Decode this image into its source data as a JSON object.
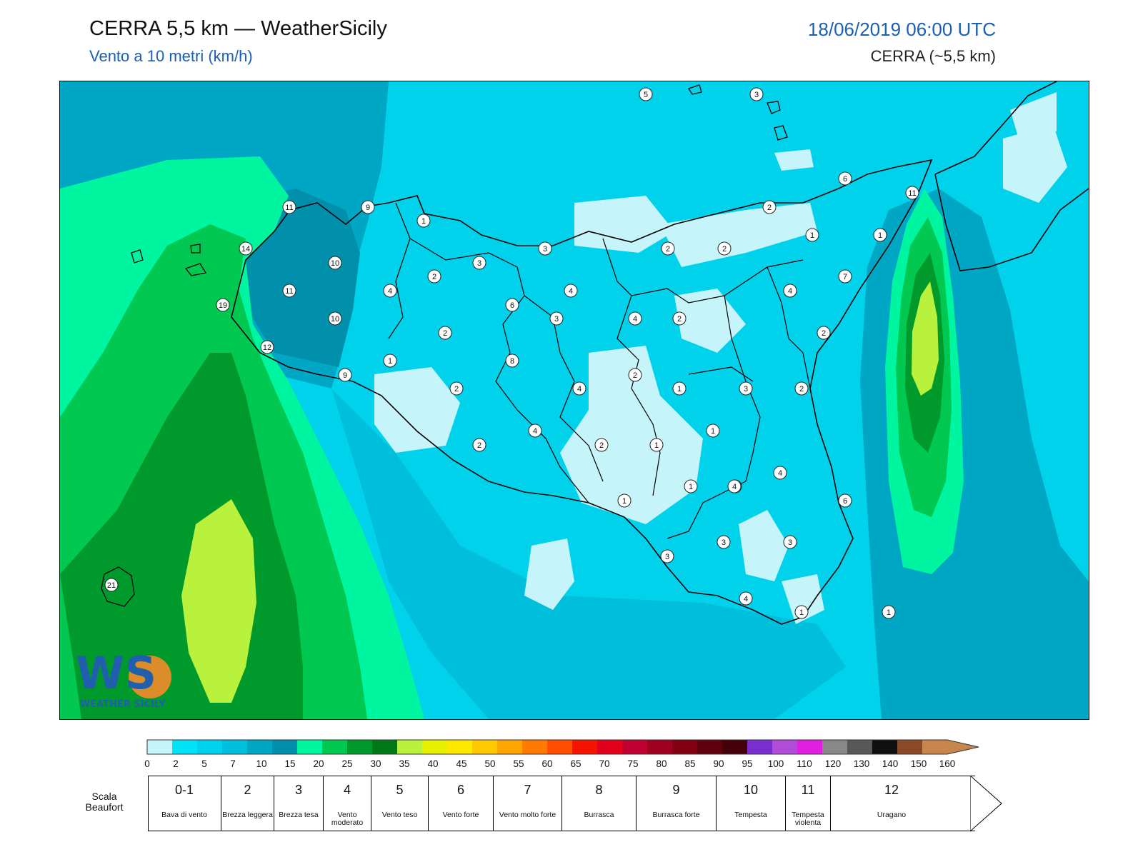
{
  "header": {
    "title": "CERRA 5,5 km — WeatherSicily",
    "subtitle": "Vento a 10 metri (km/h)",
    "datetime": "18/06/2019 06:00 UTC",
    "model": "CERRA (~5,5 km)"
  },
  "logo": {
    "text": "WS",
    "caption": "WEATHER SICILY"
  },
  "colorbar": {
    "ticks": [
      "0",
      "2",
      "5",
      "7",
      "10",
      "15",
      "20",
      "25",
      "30",
      "35",
      "40",
      "45",
      "50",
      "55",
      "60",
      "65",
      "70",
      "75",
      "80",
      "85",
      "90",
      "95",
      "100",
      "110",
      "120",
      "130",
      "140",
      "150",
      "160"
    ],
    "colors": [
      "#c6f4fb",
      "#00e3f6",
      "#00d2ee",
      "#00bfdc",
      "#00a7c4",
      "#0090ac",
      "#00f5a0",
      "#00c850",
      "#009a2c",
      "#007818",
      "#b8f23c",
      "#e6f000",
      "#ffe800",
      "#ffc800",
      "#ffa400",
      "#ff7a00",
      "#ff4e00",
      "#f41400",
      "#e0001c",
      "#c00030",
      "#a00020",
      "#800010",
      "#60000c",
      "#44000a",
      "#7a2ed0",
      "#b04cd8",
      "#e020e0",
      "#888888",
      "#585858",
      "#101010",
      "#8a4a28",
      "#c8864c"
    ]
  },
  "beaufort": {
    "label": "Scala Beaufort",
    "classes": [
      {
        "num": "0-1",
        "desc": "Bava di vento"
      },
      {
        "num": "2",
        "desc": "Brezza leggera"
      },
      {
        "num": "3",
        "desc": "Brezza tesa"
      },
      {
        "num": "4",
        "desc": "Vento moderato"
      },
      {
        "num": "5",
        "desc": "Vento teso"
      },
      {
        "num": "6",
        "desc": "Vento forte"
      },
      {
        "num": "7",
        "desc": "Vento molto forte"
      },
      {
        "num": "8",
        "desc": "Burrasca"
      },
      {
        "num": "9",
        "desc": "Burrasca forte"
      },
      {
        "num": "10",
        "desc": "Tempesta"
      },
      {
        "num": "11",
        "desc": "Tempesta violenta"
      },
      {
        "num": "12",
        "desc": "Uragano"
      }
    ]
  },
  "station_values": [
    "5",
    "3",
    "6",
    "11",
    "11",
    "9",
    "14",
    "10",
    "11",
    "19",
    "10",
    "12",
    "9",
    "1",
    "3",
    "3",
    "2",
    "4",
    "4",
    "6",
    "3",
    "4",
    "2",
    "2",
    "1",
    "2",
    "2",
    "1",
    "4",
    "2",
    "8",
    "2",
    "4",
    "2",
    "3",
    "2",
    "1",
    "7",
    "1",
    "4",
    "2",
    "2",
    "4",
    "2",
    "1",
    "1",
    "1",
    "4",
    "1",
    "3",
    "6",
    "4",
    "1",
    "3",
    "3",
    "3",
    "4",
    "1",
    "21"
  ]
}
